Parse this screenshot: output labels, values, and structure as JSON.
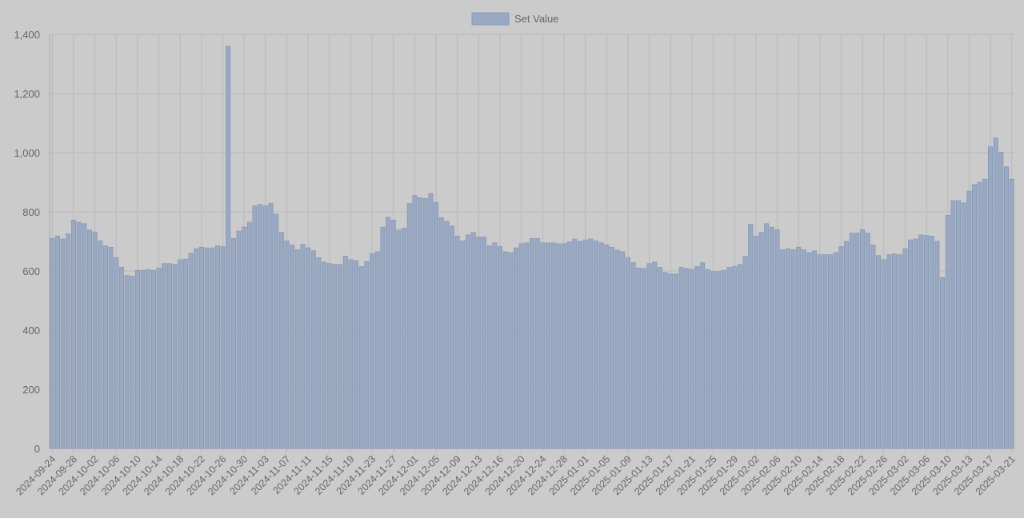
{
  "chart_data": {
    "type": "bar",
    "series": [
      {
        "name": "Set Value",
        "color": "#9aa9c3",
        "border_color": "#8797b3",
        "values": [
          710,
          718,
          708,
          725,
          772,
          765,
          760,
          738,
          732,
          702,
          685,
          680,
          645,
          612,
          585,
          582,
          602,
          602,
          605,
          602,
          610,
          625,
          625,
          622,
          638,
          640,
          660,
          675,
          680,
          678,
          678,
          685,
          682,
          1360,
          710,
          735,
          748,
          765,
          820,
          825,
          820,
          828,
          792,
          730,
          702,
          688,
          672,
          690,
          678,
          668,
          645,
          630,
          625,
          622,
          622,
          650,
          638,
          635,
          615,
          632,
          658,
          665,
          748,
          782,
          772,
          738,
          745,
          828,
          855,
          848,
          845,
          862,
          832,
          780,
          768,
          752,
          718,
          702,
          722,
          730,
          715,
          715,
          685,
          695,
          682,
          665,
          662,
          678,
          692,
          695,
          710,
          710,
          695,
          695,
          695,
          692,
          692,
          698,
          708,
          700,
          705,
          708,
          702,
          695,
          688,
          680,
          670,
          665,
          645,
          628,
          610,
          608,
          625,
          630,
          612,
          595,
          590,
          590,
          612,
          608,
          605,
          615,
          628,
          605,
          598,
          598,
          602,
          612,
          615,
          622,
          650,
          758,
          718,
          730,
          760,
          748,
          740,
          672,
          675,
          672,
          680,
          672,
          662,
          668,
          655,
          655,
          655,
          662,
          682,
          700,
          728,
          728,
          740,
          728,
          688,
          652,
          638,
          655,
          658,
          655,
          675,
          705,
          708,
          722,
          720,
          718,
          700,
          578,
          788,
          838,
          838,
          830,
          870,
          892,
          900,
          910,
          1020,
          1050,
          1002,
          952,
          910
        ]
      }
    ],
    "x_tick_labels": [
      "2024-09-24",
      "2024-09-28",
      "2024-10-02",
      "2024-10-06",
      "2024-10-10",
      "2024-10-14",
      "2024-10-18",
      "2024-10-22",
      "2024-10-26",
      "2024-10-30",
      "2024-11-03",
      "2024-11-07",
      "2024-11-11",
      "2024-11-15",
      "2024-11-19",
      "2024-11-23",
      "2024-11-27",
      "2024-12-01",
      "2024-12-05",
      "2024-12-09",
      "2024-12-13",
      "2024-12-16",
      "2024-12-20",
      "2024-12-24",
      "2024-12-28",
      "2025-01-01",
      "2025-01-05",
      "2025-01-09",
      "2025-01-13",
      "2025-01-17",
      "2025-01-21",
      "2025-01-25",
      "2025-01-29",
      "2025-02-02",
      "2025-02-06",
      "2025-02-10",
      "2025-02-14",
      "2025-02-18",
      "2025-02-22",
      "2025-02-26",
      "2025-03-02",
      "2025-03-06",
      "2025-03-10",
      "2025-03-13",
      "2025-03-17",
      "2025-03-21"
    ],
    "y_tick_labels": [
      "0",
      "200",
      "400",
      "600",
      "800",
      "1,000",
      "1,200",
      "1,400"
    ],
    "ylim": [
      0,
      1400
    ],
    "grid": true,
    "legend": "top-center",
    "title": "",
    "xlabel": "",
    "ylabel": ""
  }
}
